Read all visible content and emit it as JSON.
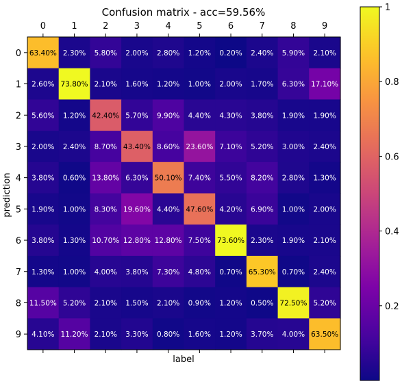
{
  "chart_data": {
    "type": "heatmap",
    "title": "Confusion matrix - acc=59.56%",
    "xlabel": "label",
    "ylabel": "prediction",
    "x_tick_position": "top",
    "x_categories": [
      "0",
      "1",
      "2",
      "3",
      "4",
      "5",
      "6",
      "7",
      "8",
      "9"
    ],
    "y_categories": [
      "0",
      "1",
      "2",
      "3",
      "4",
      "5",
      "6",
      "7",
      "8",
      "9"
    ],
    "value_format": "percent, 2 decimals",
    "values": [
      [
        63.4,
        2.3,
        5.8,
        2.0,
        2.8,
        1.2,
        0.2,
        2.4,
        5.9,
        2.1
      ],
      [
        2.6,
        73.8,
        2.1,
        1.6,
        1.2,
        1.0,
        2.0,
        1.7,
        6.3,
        17.1
      ],
      [
        5.6,
        1.2,
        42.4,
        5.7,
        9.9,
        4.4,
        4.3,
        3.8,
        1.9,
        1.9
      ],
      [
        2.0,
        2.4,
        8.7,
        43.4,
        8.6,
        23.6,
        7.1,
        5.2,
        3.0,
        2.4
      ],
      [
        3.8,
        0.6,
        13.8,
        6.3,
        50.1,
        7.4,
        5.5,
        8.2,
        2.8,
        1.3
      ],
      [
        1.9,
        1.0,
        8.3,
        19.6,
        4.4,
        47.6,
        4.2,
        6.9,
        1.0,
        2.0
      ],
      [
        3.8,
        1.3,
        10.7,
        12.8,
        12.8,
        7.5,
        73.6,
        2.3,
        1.9,
        2.1
      ],
      [
        1.3,
        1.0,
        4.0,
        3.8,
        7.3,
        4.8,
        0.7,
        65.3,
        0.7,
        2.4
      ],
      [
        11.5,
        5.2,
        2.1,
        1.5,
        2.1,
        0.9,
        1.2,
        0.5,
        72.5,
        5.2
      ],
      [
        4.1,
        11.2,
        2.1,
        3.3,
        0.8,
        1.6,
        1.2,
        3.7,
        4.0,
        63.5
      ]
    ],
    "colormap": "plasma",
    "colorbar": {
      "ticks": [
        0.2,
        0.4,
        0.6,
        0.8
      ],
      "tick_labels": [
        "0.2",
        "0.4",
        "0.6",
        "0.8"
      ],
      "top_label": "1",
      "range": [
        0.0,
        1.0
      ]
    },
    "text_colors": {
      "light_cell": "#000000",
      "dark_cell": "#ffffff"
    },
    "grid": false,
    "legend": "colorbar-right"
  }
}
